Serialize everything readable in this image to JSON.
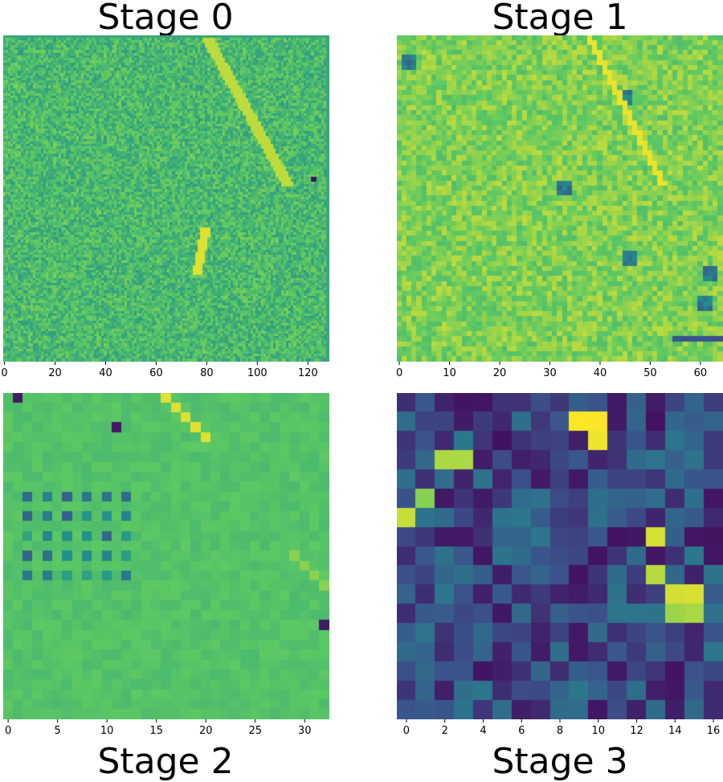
{
  "colormap": "viridis",
  "colormap_stops": [
    "#440154",
    "#3b528b",
    "#21918c",
    "#5ec962",
    "#fde725"
  ],
  "chart_data": [
    {
      "type": "heatmap",
      "title": "Stage 0",
      "grid_size": [
        129,
        129
      ],
      "xlim": [
        0,
        129
      ],
      "xticks": [
        0,
        20,
        40,
        60,
        80,
        100,
        120
      ],
      "dominant_value_range": [
        0.55,
        0.8
      ],
      "notes": "noisy texture with diagonal streaks; bright band upper right; dark dots near right edge"
    },
    {
      "type": "heatmap",
      "title": "Stage 1",
      "grid_size": [
        65,
        65
      ],
      "xlim": [
        0,
        65
      ],
      "xticks": [
        0,
        10,
        20,
        30,
        40,
        50,
        60
      ],
      "dominant_value_range": [
        0.7,
        0.9
      ],
      "notes": "mostly yellow-green; several dark blue blobs; bright diagonal streak upper middle"
    },
    {
      "type": "heatmap",
      "title": "Stage 2",
      "grid_size": [
        33,
        33
      ],
      "xlim": [
        0,
        33
      ],
      "xticks": [
        0,
        5,
        10,
        15,
        20,
        25,
        30
      ],
      "dominant_value_range": [
        0.68,
        0.75
      ],
      "notes": "flat green with periodic dark grid dots on left; bright yellow diagonals"
    },
    {
      "type": "heatmap",
      "title": "Stage 3",
      "grid_size": [
        17,
        17
      ],
      "xlim": [
        0,
        17
      ],
      "xticks": [
        0,
        2,
        4,
        6,
        8,
        10,
        12,
        14,
        16
      ],
      "dominant_value_range": [
        0.05,
        0.4
      ],
      "bright_cells": [
        [
          9,
          1
        ],
        [
          10,
          1
        ],
        [
          10,
          2
        ],
        [
          2,
          3
        ],
        [
          3,
          3
        ],
        [
          0,
          6
        ],
        [
          1,
          5
        ],
        [
          14,
          10
        ],
        [
          15,
          10
        ],
        [
          14,
          11
        ],
        [
          15,
          11
        ],
        [
          13,
          9
        ],
        [
          13,
          7
        ]
      ]
    }
  ]
}
